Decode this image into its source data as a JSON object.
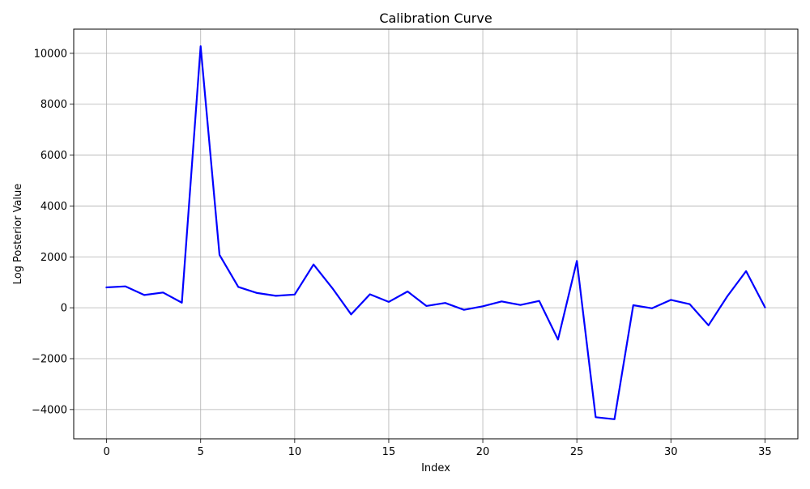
{
  "chart_data": {
    "type": "line",
    "title": "Calibration Curve",
    "xlabel": "Index",
    "ylabel": "Log Posterior Value",
    "xlim": [
      -1.75,
      36.75
    ],
    "ylim": [
      -5150,
      10950
    ],
    "xticks": [
      0,
      5,
      10,
      15,
      20,
      25,
      30,
      35
    ],
    "yticks": [
      -4000,
      -2000,
      0,
      2000,
      4000,
      6000,
      8000,
      10000
    ],
    "grid": true,
    "series": [
      {
        "color": "#0000ff",
        "x": [
          0,
          1,
          2,
          3,
          4,
          5,
          6,
          7,
          8,
          9,
          10,
          11,
          12,
          13,
          14,
          15,
          16,
          17,
          18,
          19,
          20,
          21,
          22,
          23,
          24,
          25,
          26,
          27,
          28,
          29,
          30,
          31,
          32,
          33,
          34,
          35
        ],
        "values": [
          800,
          840,
          500,
          600,
          200,
          10280,
          2080,
          820,
          580,
          470,
          520,
          1700,
          770,
          -260,
          530,
          230,
          640,
          70,
          190,
          -80,
          60,
          250,
          110,
          270,
          -1250,
          1840,
          -4300,
          -4380,
          100,
          -20,
          310,
          140,
          -690,
          450,
          1440,
          20
        ]
      }
    ]
  }
}
